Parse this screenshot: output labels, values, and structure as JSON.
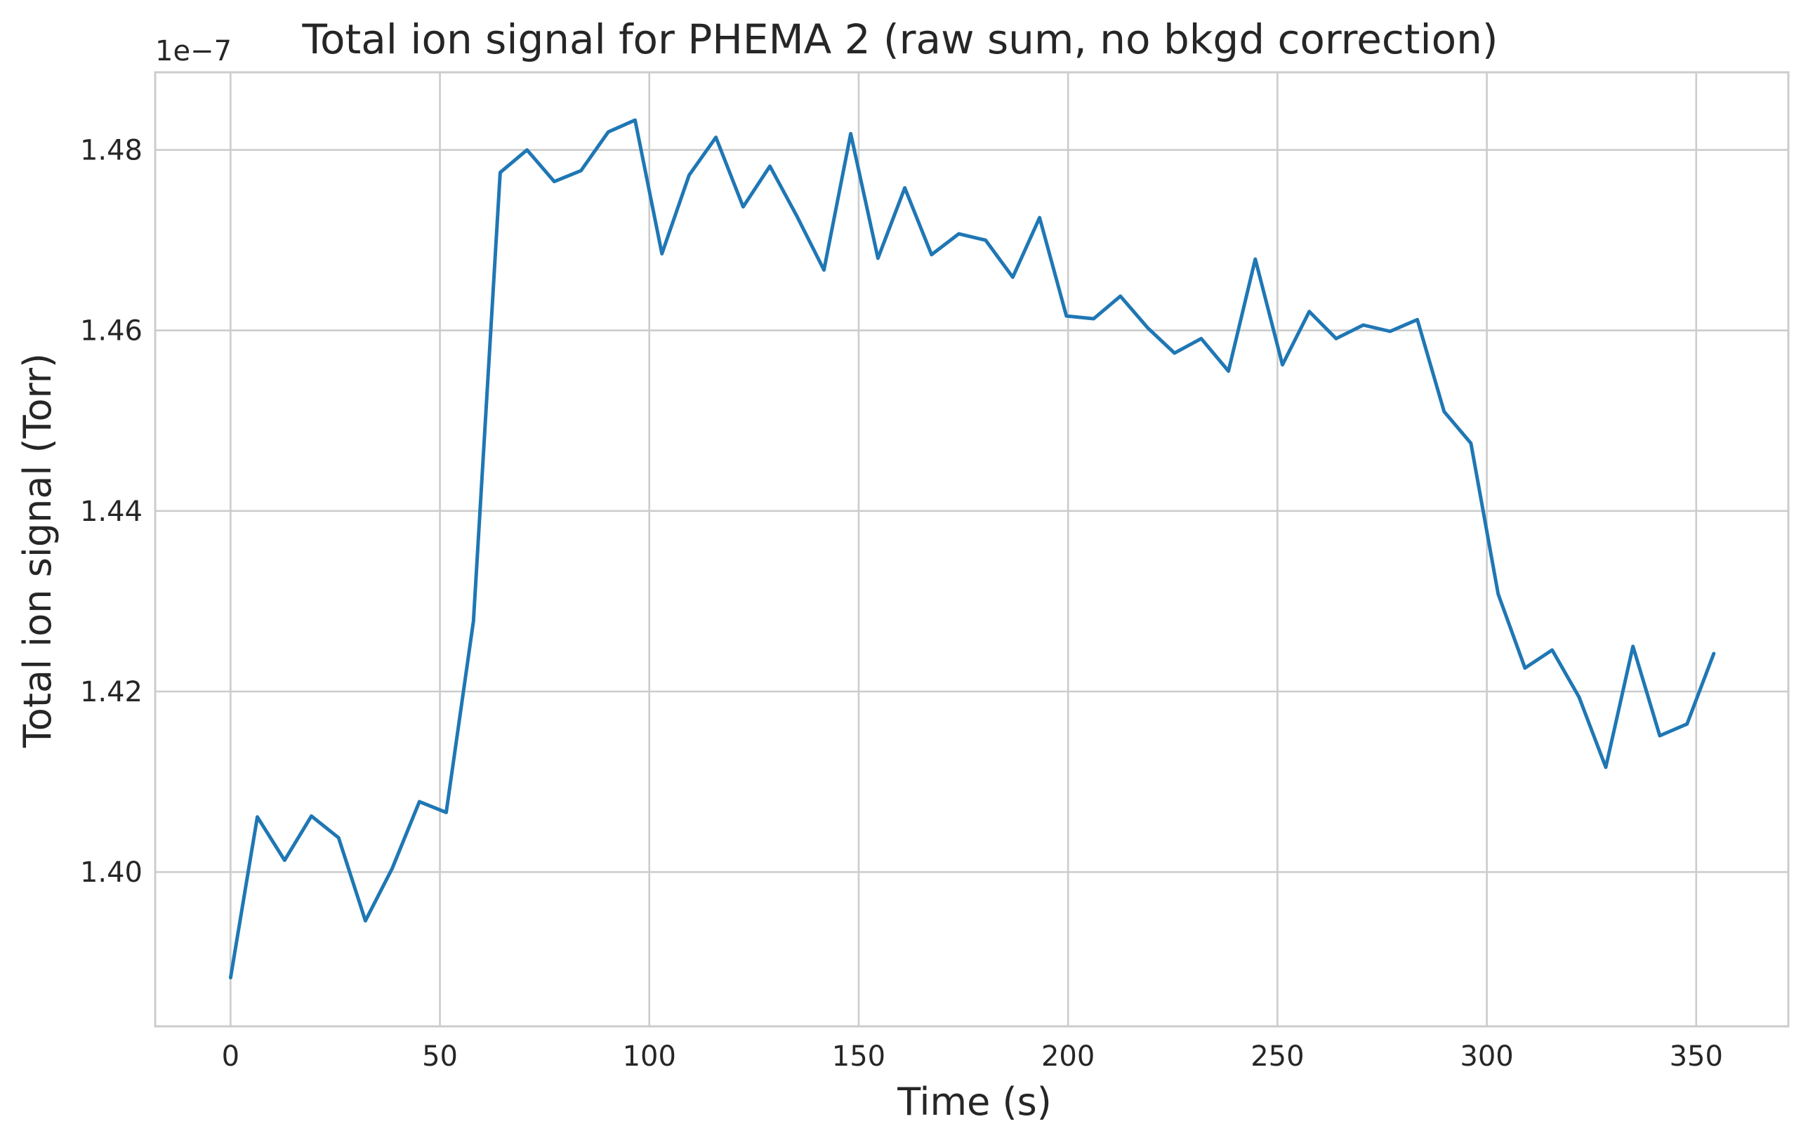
{
  "colors": {
    "series": "#1f77b4",
    "grid": "#cccccc",
    "text": "#262626",
    "background": "#ffffff"
  },
  "chart_data": {
    "type": "line",
    "title": "Total ion signal for PHEMA 2 (raw sum, no bkgd correction)",
    "xlabel": "Time (s)",
    "ylabel": "Total ion signal (Torr)",
    "y_offset_text": "1e−7",
    "xlim": [
      -18,
      372
    ],
    "ylim": [
      1.3829,
      1.4886
    ],
    "x_ticks": [
      0,
      50,
      100,
      150,
      200,
      250,
      300,
      350
    ],
    "x_tick_labels": [
      "0",
      "50",
      "100",
      "150",
      "200",
      "250",
      "300",
      "350"
    ],
    "y_ticks": [
      1.4,
      1.42,
      1.44,
      1.46,
      1.48
    ],
    "y_tick_labels": [
      "1.40",
      "1.42",
      "1.44",
      "1.46",
      "1.48"
    ],
    "grid": true,
    "series": [
      {
        "x": [
          0,
          6.4,
          12.9,
          19.3,
          25.8,
          32.2,
          38.6,
          45.1,
          51.5,
          58.0,
          64.4,
          70.8,
          77.3,
          83.7,
          90.2,
          96.6,
          103.0,
          109.5,
          115.9,
          122.4,
          128.8,
          135.2,
          141.7,
          148.1,
          154.6,
          161.0,
          167.4,
          173.9,
          180.3,
          186.8,
          193.2,
          199.6,
          206.1,
          212.5,
          219.0,
          225.4,
          231.8,
          238.3,
          244.7,
          251.2,
          257.6,
          264.0,
          270.5,
          276.9,
          283.4,
          289.8,
          296.2,
          302.7,
          309.1,
          315.6,
          322.0,
          328.4,
          334.9,
          341.3,
          347.8,
          354.2
        ],
        "y": [
          1.3883,
          1.4061,
          1.4013,
          1.4062,
          1.4038,
          1.3946,
          1.4004,
          1.4078,
          1.4066,
          1.4278,
          1.4775,
          1.48,
          1.4765,
          1.4777,
          1.482,
          1.4833,
          1.4685,
          1.4772,
          1.4814,
          1.4737,
          1.4782,
          1.4727,
          1.4667,
          1.4818,
          1.468,
          1.4758,
          1.4684,
          1.4707,
          1.47,
          1.4659,
          1.4725,
          1.4616,
          1.4613,
          1.4638,
          1.4603,
          1.4575,
          1.4591,
          1.4555,
          1.4679,
          1.4562,
          1.4621,
          1.4591,
          1.4606,
          1.4599,
          1.4612,
          1.451,
          1.4475,
          1.4308,
          1.4226,
          1.4246,
          1.4194,
          1.4116,
          1.425,
          1.4151,
          1.4164,
          1.4242
        ]
      }
    ]
  }
}
